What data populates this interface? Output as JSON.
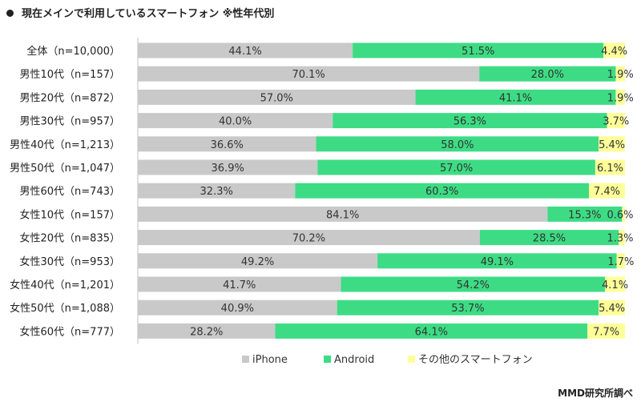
{
  "title": "現在メインで利用しているスマートフォン ※性年代別",
  "source": "MMD研究所調べ",
  "chart_data": {
    "type": "bar",
    "orientation": "horizontal",
    "stacked": true,
    "percent": true,
    "xlim": [
      0,
      100
    ],
    "grid": false,
    "legend_position": "bottom",
    "categories": [
      "全体（n=10,000）",
      "男性10代（n=157）",
      "男性20代（n=872）",
      "男性30代（n=957）",
      "男性40代（n=1,213）",
      "男性50代（n=1,047）",
      "男性60代（n=743）",
      "女性10代（n=157）",
      "女性20代（n=835）",
      "女性30代（n=953）",
      "女性40代（n=1,201）",
      "女性50代（n=1,088）",
      "女性60代（n=777）"
    ],
    "series": [
      {
        "name": "iPhone",
        "color": "#c9c9c9",
        "values": [
          44.1,
          70.1,
          57.0,
          40.0,
          36.6,
          36.9,
          32.3,
          84.1,
          70.2,
          49.2,
          41.7,
          40.9,
          28.2
        ]
      },
      {
        "name": "Android",
        "color": "#3ddc84",
        "values": [
          51.5,
          28.0,
          41.1,
          56.3,
          58.0,
          57.0,
          60.3,
          15.3,
          28.5,
          49.1,
          54.2,
          53.7,
          64.1
        ]
      },
      {
        "name": "その他のスマートフォン",
        "color": "#ffff99",
        "values": [
          4.4,
          1.9,
          1.9,
          3.7,
          5.4,
          6.1,
          7.4,
          0.6,
          1.3,
          1.7,
          4.1,
          5.4,
          7.7
        ]
      }
    ]
  }
}
